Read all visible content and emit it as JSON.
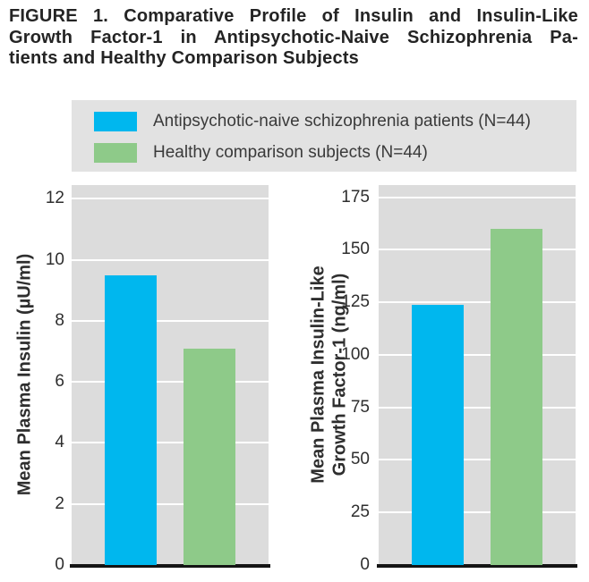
{
  "figure": {
    "title_lines": [
      "FIGURE 1. Comparative Profile of Insulin and Insulin-Like",
      "Growth Factor-1 in Antipsychotic-Naive Schizophrenia Pa-",
      "tients and Healthy Comparison Subjects"
    ]
  },
  "legend": {
    "items": [
      {
        "label": "Antipsychotic-naive schizophrenia patients (N=44)",
        "color": "#00b7ee"
      },
      {
        "label": "Healthy comparison subjects (N=44)",
        "color": "#8eca89"
      }
    ]
  },
  "colors": {
    "patients_bar": "#00b7ee",
    "controls_bar": "#8eca89",
    "plot_background": "#dcdcdc",
    "legend_background": "#e2e2e2",
    "gridline": "#ffffff",
    "axis_line": "#141414",
    "text": "#2e2e2e"
  },
  "chart_data": [
    {
      "type": "bar",
      "title": "",
      "xlabel": "",
      "ylabel": "Mean Plasma Insulin (µU/ml)",
      "ylabel_lines": [
        "Mean Plasma Insulin (µU/ml)"
      ],
      "categories": [
        "Antipsychotic-naive schizophrenia patients (N=44)",
        "Healthy comparison subjects (N=44)"
      ],
      "values": [
        9.5,
        7.1
      ],
      "yticks": [
        0,
        2,
        4,
        6,
        8,
        10,
        12
      ],
      "ylim": [
        0,
        12.45
      ],
      "grid": true,
      "legend_position": "top"
    },
    {
      "type": "bar",
      "title": "",
      "xlabel": "",
      "ylabel": "Mean Plasma Insulin-Like Growth Factor-1 (ng/ml)",
      "ylabel_lines": [
        "Mean Plasma Insulin-Like",
        "Growth Factor-1 (ng/ml)"
      ],
      "categories": [
        "Antipsychotic-naive schizophrenia patients (N=44)",
        "Healthy comparison subjects (N=44)"
      ],
      "values": [
        124,
        160
      ],
      "yticks": [
        0,
        25,
        50,
        75,
        100,
        125,
        150,
        175
      ],
      "ylim": [
        0,
        180.8
      ],
      "grid": true,
      "legend_position": "top"
    }
  ]
}
